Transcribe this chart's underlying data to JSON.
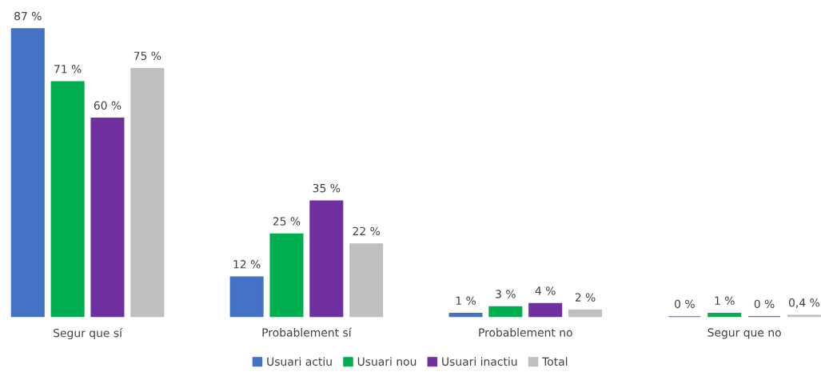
{
  "chart_data": {
    "type": "bar",
    "categories": [
      "Segur que sí",
      "Probablement sí",
      "Probablement no",
      "Segur que no"
    ],
    "series": [
      {
        "name": "Usuari actiu",
        "color": "#4472c4",
        "values": [
          87,
          12,
          1,
          0
        ],
        "value_labels": [
          "87 %",
          "12 %",
          "1 %",
          "0 %"
        ]
      },
      {
        "name": "Usuari nou",
        "color": "#00b050",
        "values": [
          71,
          25,
          3,
          1
        ],
        "value_labels": [
          "71 %",
          "25 %",
          "3 %",
          "1 %"
        ]
      },
      {
        "name": "Usuari inactiu",
        "color": "#7030a0",
        "values": [
          60,
          35,
          4,
          0
        ],
        "value_labels": [
          "60 %",
          "35 %",
          "4 %",
          "0 %"
        ]
      },
      {
        "name": "Total",
        "color": "#bfbfbf",
        "values": [
          75,
          22,
          2,
          0.4
        ],
        "value_labels": [
          "75 %",
          "22 %",
          "2 %",
          "0,4 %"
        ]
      }
    ],
    "legend": "bottom",
    "grid": false,
    "tick_labels": "x"
  }
}
